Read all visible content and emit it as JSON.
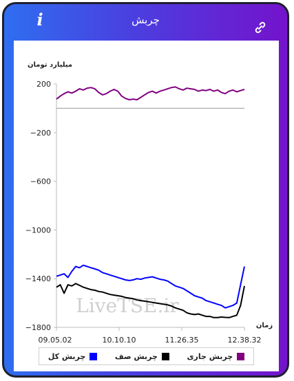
{
  "header": {
    "title": "چربش",
    "info_symbol": "i",
    "link_icon": "link-icon"
  },
  "chart_data": {
    "type": "line",
    "ylabel": "میلیارد تومان",
    "xlabel": "زمان",
    "ylim": [
      -1800,
      200
    ],
    "yticks": [
      "200",
      "−200",
      "−600",
      "−1000",
      "−1400",
      "−1800"
    ],
    "ytick_values": [
      200,
      -200,
      -600,
      -1000,
      -1400,
      -1800
    ],
    "x_ticks": [
      "09.05.02",
      "10.10.10",
      "11.26.35",
      "12.38.32"
    ],
    "reference_line": 0,
    "watermark": "LiveTSE.ir",
    "legend": [
      "چربش جاری",
      "چربش صف",
      "چربش کل"
    ],
    "series": [
      {
        "name": "چربش جاری",
        "color": "#800080",
        "values": [
          75,
          100,
          120,
          135,
          125,
          140,
          160,
          150,
          165,
          170,
          160,
          130,
          110,
          120,
          140,
          155,
          140,
          100,
          80,
          70,
          75,
          70,
          90,
          110,
          130,
          140,
          125,
          140,
          150,
          160,
          170,
          175,
          160,
          150,
          165,
          160,
          155,
          140,
          150,
          145,
          155,
          140,
          150,
          130,
          120,
          140,
          150,
          135,
          145,
          155
        ]
      },
      {
        "name": "چربش صف",
        "color": "#000000",
        "values": [
          -1470,
          -1450,
          -1520,
          -1450,
          -1460,
          -1440,
          -1455,
          -1470,
          -1480,
          -1490,
          -1495,
          -1505,
          -1510,
          -1520,
          -1530,
          -1535,
          -1540,
          -1545,
          -1555,
          -1560,
          -1565,
          -1575,
          -1580,
          -1585,
          -1590,
          -1595,
          -1600,
          -1605,
          -1610,
          -1615,
          -1625,
          -1640,
          -1650,
          -1660,
          -1680,
          -1690,
          -1695,
          -1690,
          -1700,
          -1710,
          -1710,
          -1720,
          -1720,
          -1715,
          -1718,
          -1720,
          -1710,
          -1700,
          -1620,
          -1460
        ]
      },
      {
        "name": "چربش کل",
        "color": "#0000ff",
        "values": [
          -1380,
          -1370,
          -1360,
          -1390,
          -1340,
          -1300,
          -1310,
          -1290,
          -1300,
          -1310,
          -1320,
          -1330,
          -1350,
          -1360,
          -1370,
          -1380,
          -1390,
          -1400,
          -1410,
          -1415,
          -1410,
          -1400,
          -1405,
          -1395,
          -1390,
          -1385,
          -1395,
          -1405,
          -1410,
          -1420,
          -1440,
          -1460,
          -1470,
          -1480,
          -1500,
          -1520,
          -1540,
          -1550,
          -1560,
          -1580,
          -1590,
          -1600,
          -1610,
          -1620,
          -1640,
          -1630,
          -1620,
          -1600,
          -1450,
          -1300
        ]
      }
    ]
  }
}
